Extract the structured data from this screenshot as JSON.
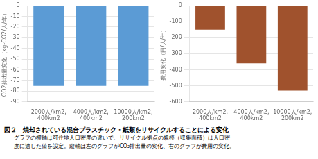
{
  "title": "図２　焼却されている混合プラスチック・紙類をリサイクルすることによる変化",
  "annotations": [
    "グラフの横軸は可住地人口密度の違いで、リサイクル拠点の規模（収集面積）は人口密",
    "度に適した値を設定。縦軸は左のグラフがCO₂排出量の変化、右のグラフが費用の変化。"
  ],
  "chart_data": [
    {
      "type": "bar",
      "categories": [
        "2000人/km2,\n400km2",
        "4000人/km2,\n400km2",
        "10000人/km2,\n200km2"
      ],
      "values": [
        -75,
        -75,
        -75
      ],
      "color": "#5B9BD5",
      "ylabel": "CO2排出量変化（kg-CO2/人/年）",
      "ylim": [
        -90,
        0
      ],
      "yticks": [
        0,
        -10,
        -20,
        -30,
        -40,
        -50,
        -60,
        -70,
        -80,
        -90
      ],
      "grid": true
    },
    {
      "type": "bar",
      "categories": [
        "2000人/km2,\n400km2",
        "4000人/km2,\n400km2",
        "10000人/km2,\n200km2"
      ],
      "values": [
        -150,
        -360,
        -530
      ],
      "color": "#A0522D",
      "ylabel": "費用変化（円/人/年）",
      "ylim": [
        -600,
        0
      ],
      "yticks": [
        0,
        -100,
        -200,
        -300,
        -400,
        -500,
        -600
      ],
      "grid": true
    }
  ]
}
